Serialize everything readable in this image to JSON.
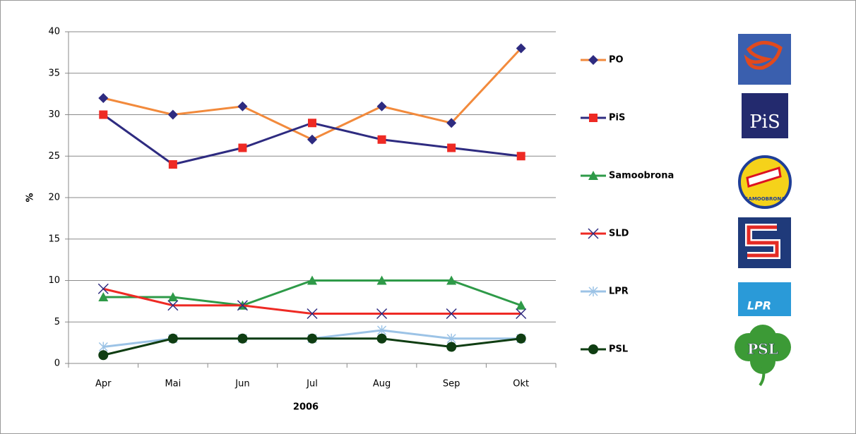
{
  "chart_data": {
    "type": "line",
    "categories": [
      "Apr",
      "Mai",
      "Jun",
      "Jul",
      "Aug",
      "Sep",
      "Okt"
    ],
    "x_label": "2006",
    "y_label": "%",
    "ylim": [
      0,
      40
    ],
    "yticks": [
      0,
      5,
      10,
      15,
      20,
      25,
      30,
      35,
      40
    ],
    "grid": true,
    "series": [
      {
        "name": "PO",
        "color": "#f28a3c",
        "marker": "diamond",
        "marker_color": "#2e2b80",
        "values": [
          32,
          30,
          31,
          27,
          31,
          29,
          38
        ]
      },
      {
        "name": "PiS",
        "color": "#2e2b80",
        "marker": "square",
        "marker_color": "#ee2a24",
        "values": [
          30,
          24,
          26,
          29,
          27,
          26,
          25
        ]
      },
      {
        "name": "Samoobrona",
        "color": "#2e9a48",
        "marker": "triangle",
        "marker_color": "#2e9a48",
        "values": [
          8,
          8,
          7,
          10,
          10,
          10,
          7
        ]
      },
      {
        "name": "SLD",
        "color": "#ee2a24",
        "marker": "x",
        "marker_color": "#2e2b80",
        "values": [
          9,
          7,
          7,
          6,
          6,
          6,
          6
        ]
      },
      {
        "name": "LPR",
        "color": "#9cc3e6",
        "marker": "star",
        "marker_color": "#9cc3e6",
        "values": [
          2,
          3,
          3,
          3,
          4,
          3,
          3
        ]
      },
      {
        "name": "PSL",
        "color": "#0f3d12",
        "marker": "circle",
        "marker_color": "#0f3d12",
        "values": [
          1,
          3,
          3,
          3,
          3,
          2,
          3
        ]
      }
    ]
  },
  "logos": [
    "PiS",
    "SAMOOBRONA",
    "LPR",
    "PSL"
  ]
}
